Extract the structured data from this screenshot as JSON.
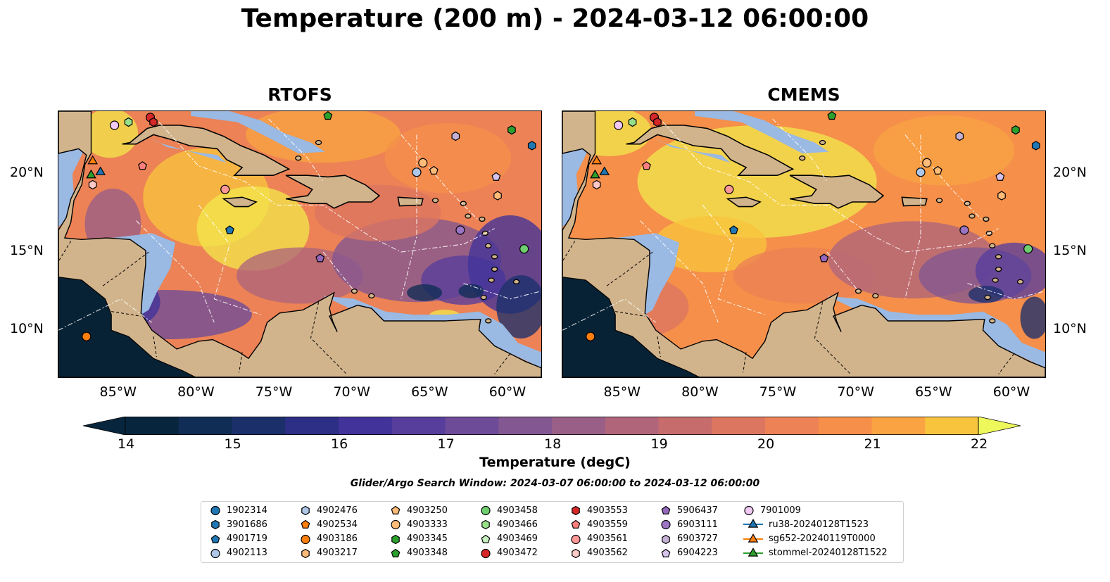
{
  "title": "Temperature (200 m) - 2024-03-12 06:00:00",
  "panels": [
    {
      "id": "rtofs",
      "title": "RTOFS"
    },
    {
      "id": "cmems",
      "title": "CMEMS"
    }
  ],
  "x_ticks": [
    "85°W",
    "80°W",
    "75°W",
    "70°W",
    "65°W",
    "60°W"
  ],
  "y_ticks": [
    "20°N",
    "15°N",
    "10°N"
  ],
  "map_extent": {
    "lon": [
      -89,
      -58
    ],
    "lat": [
      7,
      24
    ]
  },
  "colorbar": {
    "label": "Temperature (degC)",
    "ticks": [
      "14",
      "15",
      "16",
      "17",
      "18",
      "19",
      "20",
      "21",
      "22"
    ],
    "range": [
      14,
      22
    ],
    "step": 0.5,
    "extend": "both",
    "colormap": "thermal",
    "colors": {
      "14.0": "#07263d",
      "14.5": "#0f2d55",
      "15.0": "#1b2f6b",
      "15.5": "#2c2f85",
      "16.0": "#41339a",
      "16.5": "#573d9c",
      "17.0": "#6d4b98",
      "17.5": "#835791",
      "18.0": "#995f86",
      "18.5": "#b0657b",
      "19.0": "#c76c6c",
      "19.5": "#dc7660",
      "20.0": "#ec8255",
      "20.5": "#f58f4a",
      "21.0": "#f9a342",
      "21.5": "#f8c43d",
      "22.0": "#f2e64c",
      "over": "#eef85a"
    }
  },
  "map_colors": {
    "land": "#d2b48c",
    "shelf": "#9ab9e3",
    "deep_pacific": "#082235"
  },
  "search_window": "Glider/Argo Search Window: 2024-03-07 06:00:00 to 2024-03-12 06:00:00",
  "legend": [
    {
      "label": "1902314",
      "marker": "circle",
      "color": "#1f77b4"
    },
    {
      "label": "3901686",
      "marker": "hexagon",
      "color": "#1f77b4"
    },
    {
      "label": "4901719",
      "marker": "pentagon",
      "color": "#1f77b4"
    },
    {
      "label": "4902113",
      "marker": "circle",
      "color": "#aec7e8"
    },
    {
      "label": "4902476",
      "marker": "hexagon",
      "color": "#aec7e8"
    },
    {
      "label": "4902534",
      "marker": "pentagon",
      "color": "#ff7f0e"
    },
    {
      "label": "4903186",
      "marker": "circle",
      "color": "#ff7f0e"
    },
    {
      "label": "4903217",
      "marker": "hexagon",
      "color": "#ffbb78"
    },
    {
      "label": "4903250",
      "marker": "pentagon",
      "color": "#ffbb78"
    },
    {
      "label": "4903333",
      "marker": "circle",
      "color": "#ffbb78"
    },
    {
      "label": "4903345",
      "marker": "hexagon",
      "color": "#2ca02c"
    },
    {
      "label": "4903348",
      "marker": "pentagon",
      "color": "#2ca02c"
    },
    {
      "label": "4903458",
      "marker": "circle",
      "color": "#6fcf6f"
    },
    {
      "label": "4903466",
      "marker": "hexagon",
      "color": "#98df8a"
    },
    {
      "label": "4903469",
      "marker": "pentagon",
      "color": "#c8f0c0"
    },
    {
      "label": "4903472",
      "marker": "circle",
      "color": "#d62728"
    },
    {
      "label": "4903553",
      "marker": "hexagon",
      "color": "#d62728"
    },
    {
      "label": "4903559",
      "marker": "pentagon",
      "color": "#ff7f7f"
    },
    {
      "label": "4903561",
      "marker": "circle",
      "color": "#ff9896"
    },
    {
      "label": "4903562",
      "marker": "hexagon",
      "color": "#ffc9c8"
    },
    {
      "label": "5906437",
      "marker": "pentagon",
      "color": "#9467bd"
    },
    {
      "label": "6903111",
      "marker": "circle",
      "color": "#9b74c4"
    },
    {
      "label": "6903727",
      "marker": "hexagon",
      "color": "#c5b0d5"
    },
    {
      "label": "6904223",
      "marker": "pentagon",
      "color": "#d6c3ec"
    },
    {
      "label": "7901009",
      "marker": "circle",
      "color": "#f2c9f5"
    },
    {
      "label": "ru38-20240128T1523",
      "marker": "triangle-line",
      "color": "#1f77b4"
    },
    {
      "label": "sg652-20240119T0000",
      "marker": "triangle-line",
      "color": "#ff7f0e"
    },
    {
      "label": "stommel-20240128T1522",
      "marker": "triangle-line",
      "color": "#2ca02c"
    }
  ],
  "observations": [
    {
      "label": "7901009",
      "lon": -85.4,
      "lat": 23.1
    },
    {
      "label": "4903466",
      "lon": -84.5,
      "lat": 23.3
    },
    {
      "label": "4903472",
      "lon": -83.1,
      "lat": 23.6
    },
    {
      "label": "4903553",
      "lon": -82.9,
      "lat": 23.3
    },
    {
      "label": "4903348",
      "lon": -71.7,
      "lat": 23.7
    },
    {
      "label": "6903727",
      "lon": -63.5,
      "lat": 22.4
    },
    {
      "label": "4903345",
      "lon": -59.9,
      "lat": 22.8
    },
    {
      "label": "3901686",
      "lon": -58.6,
      "lat": 21.8
    },
    {
      "label": "sg652-20240119T0000",
      "lon": -86.8,
      "lat": 20.8
    },
    {
      "label": "stommel-20240128T1522",
      "lon": -86.9,
      "lat": 19.9
    },
    {
      "label": "ru38-20240128T1523",
      "lon": -86.3,
      "lat": 20.1
    },
    {
      "label": "4903562",
      "lon": -86.8,
      "lat": 19.3
    },
    {
      "label": "4903559",
      "lon": -83.6,
      "lat": 20.5
    },
    {
      "label": "4903561",
      "lon": -78.3,
      "lat": 19.0
    },
    {
      "label": "4903333",
      "lon": -65.6,
      "lat": 20.7
    },
    {
      "label": "4902113",
      "lon": -66.0,
      "lat": 20.1
    },
    {
      "label": "4903250",
      "lon": -64.9,
      "lat": 20.2
    },
    {
      "label": "6904223",
      "lon": -60.9,
      "lat": 19.8
    },
    {
      "label": "4903217",
      "lon": -60.8,
      "lat": 18.6
    },
    {
      "label": "4901719",
      "lon": -78.0,
      "lat": 16.4
    },
    {
      "label": "6903111",
      "lon": -63.2,
      "lat": 16.4
    },
    {
      "label": "5906437",
      "lon": -72.2,
      "lat": 14.6
    },
    {
      "label": "4903458",
      "lon": -59.1,
      "lat": 15.2
    },
    {
      "label": "4903186",
      "lon": -87.2,
      "lat": 9.6
    }
  ]
}
